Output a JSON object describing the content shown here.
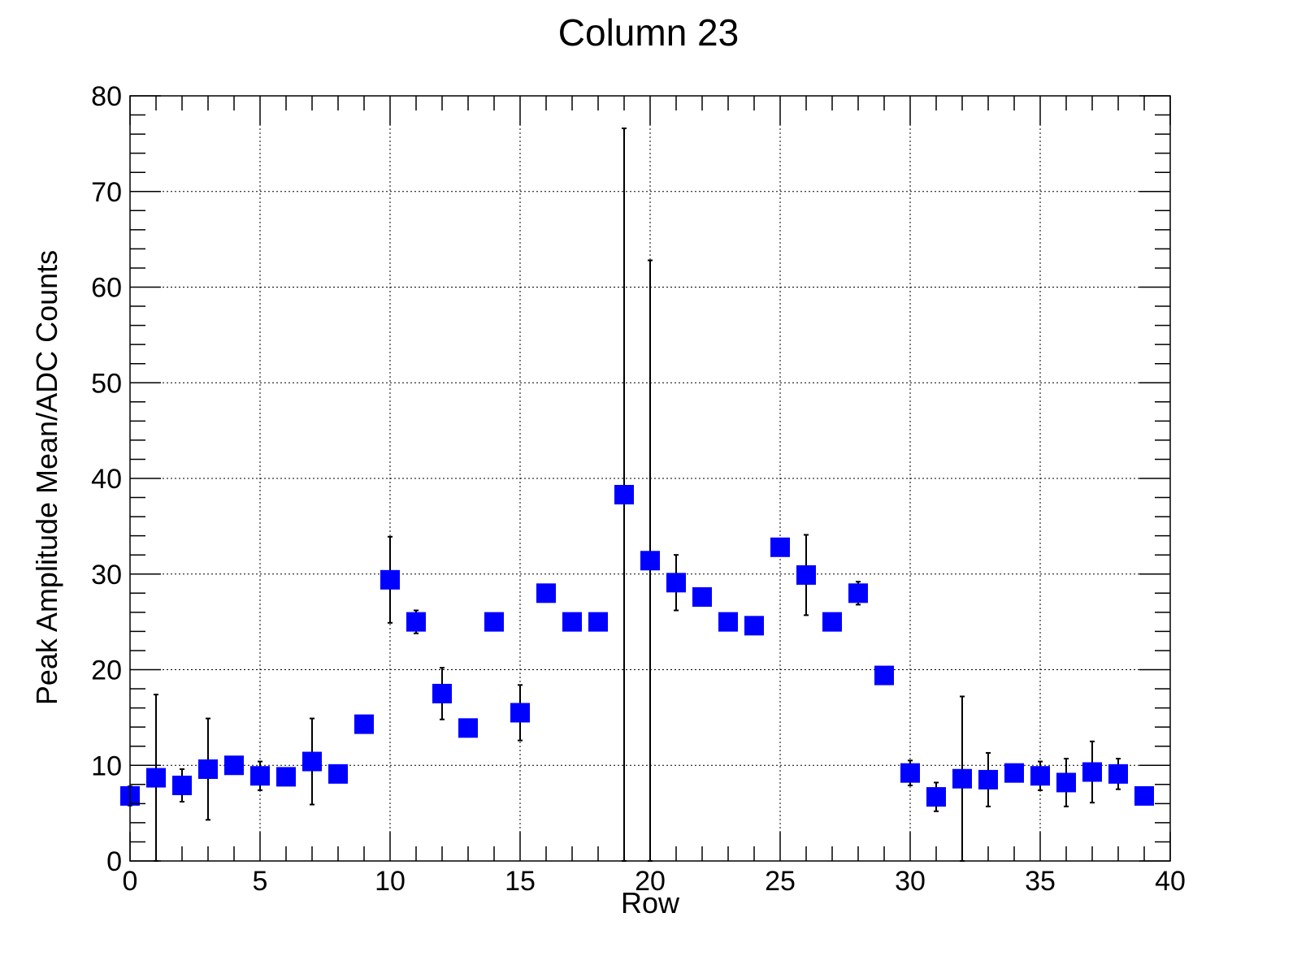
{
  "chart_data": {
    "type": "scatter",
    "title": "Column 23",
    "xlabel": "Row",
    "ylabel": "Peak Amplitude Mean/ADC Counts",
    "xlim": [
      0,
      40
    ],
    "ylim": [
      0,
      80
    ],
    "x_ticks": [
      0,
      5,
      10,
      15,
      20,
      25,
      30,
      35,
      40
    ],
    "y_ticks": [
      0,
      10,
      20,
      30,
      40,
      50,
      60,
      70,
      80
    ],
    "grid": true,
    "marker": "square",
    "marker_color": "#0000ff",
    "error_bar_color": "#000000",
    "points": [
      {
        "x": 0,
        "y": 6.8,
        "err": 1.0
      },
      {
        "x": 1,
        "y": 8.7,
        "err": 8.7
      },
      {
        "x": 2,
        "y": 7.9,
        "err": 1.7
      },
      {
        "x": 3,
        "y": 9.6,
        "err": 5.3
      },
      {
        "x": 4,
        "y": 10.0,
        "err": 0.4
      },
      {
        "x": 5,
        "y": 8.9,
        "err": 1.5
      },
      {
        "x": 6,
        "y": 8.8,
        "err": 0.4
      },
      {
        "x": 7,
        "y": 10.4,
        "err": 4.5
      },
      {
        "x": 8,
        "y": 9.1,
        "err": 0.3
      },
      {
        "x": 9,
        "y": 14.3,
        "err": 0.3
      },
      {
        "x": 10,
        "y": 29.4,
        "err": 4.5
      },
      {
        "x": 11,
        "y": 25.0,
        "err": 1.2
      },
      {
        "x": 12,
        "y": 17.5,
        "err": 2.7
      },
      {
        "x": 13,
        "y": 13.9,
        "err": 0.3
      },
      {
        "x": 14,
        "y": 25.0,
        "err": 0.3
      },
      {
        "x": 15,
        "y": 15.5,
        "err": 2.9
      },
      {
        "x": 16,
        "y": 28.0,
        "err": 0.3
      },
      {
        "x": 17,
        "y": 25.0,
        "err": 0.3
      },
      {
        "x": 18,
        "y": 25.0,
        "err": 0.3
      },
      {
        "x": 19,
        "y": 38.3,
        "err": 38.3
      },
      {
        "x": 20,
        "y": 31.4,
        "err": 31.4
      },
      {
        "x": 21,
        "y": 29.1,
        "err": 2.9
      },
      {
        "x": 22,
        "y": 27.6,
        "err": 0.3
      },
      {
        "x": 23,
        "y": 25.0,
        "err": 0.3
      },
      {
        "x": 24,
        "y": 24.6,
        "err": 0.3
      },
      {
        "x": 25,
        "y": 32.8,
        "err": 0.3
      },
      {
        "x": 26,
        "y": 29.9,
        "err": 4.2
      },
      {
        "x": 27,
        "y": 25.0,
        "err": 0.3
      },
      {
        "x": 28,
        "y": 28.0,
        "err": 1.2
      },
      {
        "x": 29,
        "y": 19.4,
        "err": 0.3
      },
      {
        "x": 30,
        "y": 9.2,
        "err": 1.3
      },
      {
        "x": 31,
        "y": 6.7,
        "err": 1.5
      },
      {
        "x": 32,
        "y": 8.6,
        "err": 8.6
      },
      {
        "x": 33,
        "y": 8.5,
        "err": 2.8
      },
      {
        "x": 34,
        "y": 9.2,
        "err": 0.4
      },
      {
        "x": 35,
        "y": 8.9,
        "err": 1.5
      },
      {
        "x": 36,
        "y": 8.2,
        "err": 2.5
      },
      {
        "x": 37,
        "y": 9.3,
        "err": 3.2
      },
      {
        "x": 38,
        "y": 9.1,
        "err": 1.6
      },
      {
        "x": 39,
        "y": 6.8,
        "err": 0.3
      }
    ]
  }
}
